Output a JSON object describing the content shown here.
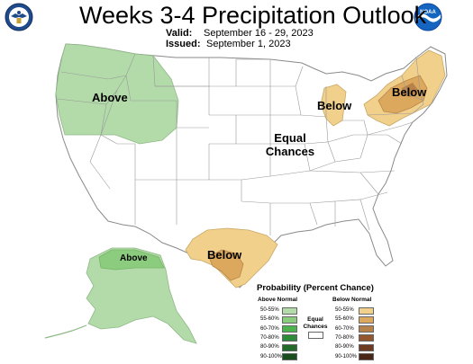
{
  "header": {
    "title": "Weeks 3-4 Precipitation Outlook",
    "valid_label": "Valid:",
    "valid_value": "September 16 - 29, 2023",
    "issued_label": "Issued:",
    "issued_value": "September 1, 2023",
    "left_logo_icon": "noaa-eagle-seal-icon",
    "right_logo_icon": "noaa-globe-logo-icon",
    "right_logo_text": "NOAA"
  },
  "map": {
    "labels": {
      "above_west": "Above",
      "below_great_lakes": "Below",
      "below_northeast": "Below",
      "equal_1": "Equal",
      "equal_2": "Chances",
      "below_texas": "Below",
      "above_alaska": "Above"
    },
    "colors": {
      "above_50_55": "#b3dba9",
      "below_50_55": "#f1d08c",
      "below_55_60": "#dba85e",
      "below_60_70": "#b7824a",
      "state_fill": "#ffffff",
      "state_border": "#9a9a9a"
    },
    "regions": [
      {
        "name": "Pacific Northwest and Northern Rockies",
        "category": "Above",
        "probability": "50-55%"
      },
      {
        "name": "Michigan / Great Lakes",
        "category": "Below",
        "probability": "50-55%"
      },
      {
        "name": "Northeast",
        "category": "Below",
        "probability": "50-55%"
      },
      {
        "name": "Northeast core",
        "category": "Below",
        "probability": "55-60%"
      },
      {
        "name": "Central Texas",
        "category": "Below",
        "probability": "50-55%"
      },
      {
        "name": "Central Texas core",
        "category": "Below",
        "probability": "55-60%"
      },
      {
        "name": "Northern Alaska",
        "category": "Above",
        "probability": "55-60%"
      },
      {
        "name": "Rest of Alaska",
        "category": "Above",
        "probability": "50-55%"
      }
    ]
  },
  "legend": {
    "title": "Probability (Percent Chance)",
    "above_heading": "Above Normal",
    "below_heading": "Below Normal",
    "equal_1": "Equal",
    "equal_2": "Chances",
    "above": [
      {
        "label": "50-55%",
        "color": "#b3dba9"
      },
      {
        "label": "55-60%",
        "color": "#8ccc7e"
      },
      {
        "label": "60-70%",
        "color": "#4db34d"
      },
      {
        "label": "70-80%",
        "color": "#2e8b3a"
      },
      {
        "label": "80-90%",
        "color": "#226b2b"
      },
      {
        "label": "90-100%",
        "color": "#1a4d1e"
      }
    ],
    "below": [
      {
        "label": "50-55%",
        "color": "#f1d08c"
      },
      {
        "label": "55-60%",
        "color": "#dba85e"
      },
      {
        "label": "60-70%",
        "color": "#b7824a"
      },
      {
        "label": "70-80%",
        "color": "#93562e"
      },
      {
        "label": "80-90%",
        "color": "#6e3a22"
      },
      {
        "label": "90-100%",
        "color": "#4a2616"
      }
    ],
    "equal_color": "#ffffff"
  }
}
